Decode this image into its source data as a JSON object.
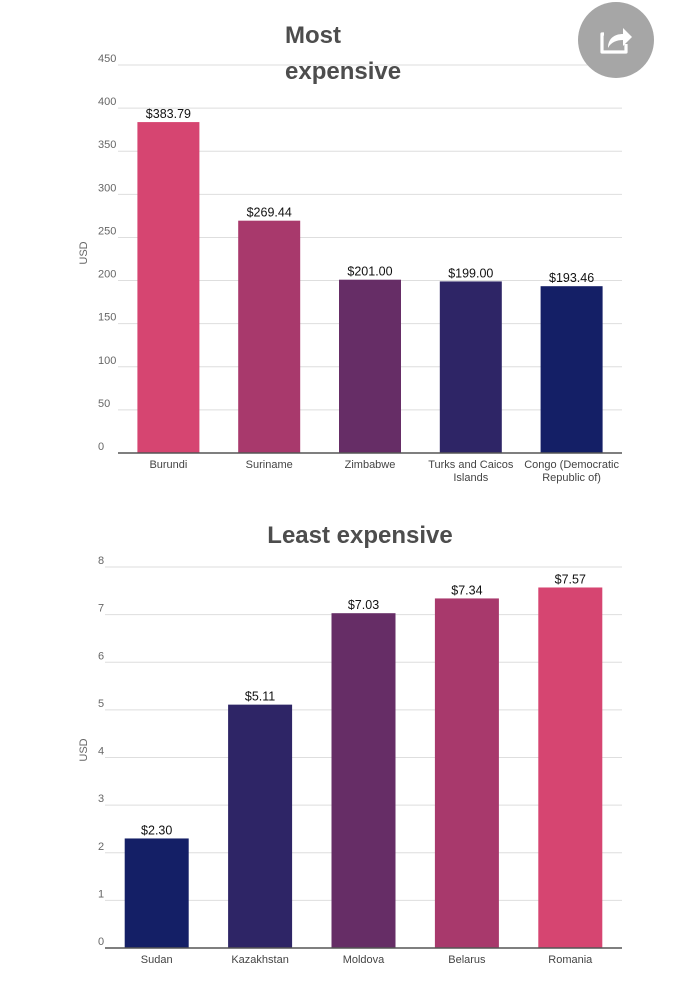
{
  "share_button": {
    "icon": "share-icon"
  },
  "chart_data": [
    {
      "type": "bar",
      "title_lines": [
        "Most",
        "expensive"
      ],
      "ylabel": "USD",
      "ylim": [
        0,
        450
      ],
      "yticks": [
        0,
        50,
        100,
        150,
        200,
        250,
        300,
        350,
        400,
        450
      ],
      "grid": true,
      "categories": [
        [
          "Burundi"
        ],
        [
          "Suriname"
        ],
        [
          "Zimbabwe"
        ],
        [
          "Turks and Caicos",
          "Islands"
        ],
        [
          "Congo (Democratic",
          "Republic of)"
        ]
      ],
      "values": [
        383.79,
        269.44,
        201.0,
        199.0,
        193.46
      ],
      "value_labels": [
        "$383.79",
        "$269.44",
        "$201.00",
        "$199.00",
        "$193.46"
      ],
      "colors": [
        "#d64571",
        "#a8396c",
        "#662d66",
        "#2e2566",
        "#141f66"
      ]
    },
    {
      "type": "bar",
      "title_lines": [
        "Least expensive"
      ],
      "ylabel": "USD",
      "ylim": [
        0,
        8
      ],
      "yticks": [
        0,
        1,
        2,
        3,
        4,
        5,
        6,
        7,
        8
      ],
      "grid": true,
      "categories": [
        [
          "Sudan"
        ],
        [
          "Kazakhstan"
        ],
        [
          "Moldova"
        ],
        [
          "Belarus"
        ],
        [
          "Romania"
        ]
      ],
      "values": [
        2.3,
        5.11,
        7.03,
        7.34,
        7.57
      ],
      "value_labels": [
        "$2.30",
        "$5.11",
        "$7.03",
        "$7.34",
        "$7.57"
      ],
      "colors": [
        "#141f66",
        "#2e2566",
        "#662d66",
        "#a8396c",
        "#d64571"
      ]
    }
  ]
}
